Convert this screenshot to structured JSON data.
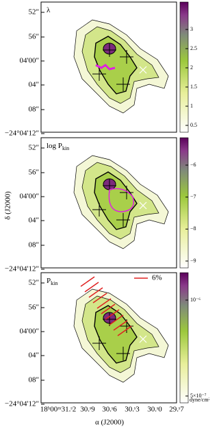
{
  "figure": {
    "y_axis_label": "δ (J2000)",
    "x_axis_label": "α (J2000)",
    "x_tick_labels": [
      "18ʰ00ᵐ31.ˢ2",
      "30.ˢ9",
      "30.ˢ6",
      "30.ˢ3",
      "30.ˢ0",
      "29.ˢ7"
    ],
    "y_tick_labels": [
      "52\"",
      "56\"",
      "04'00\"",
      "04\"",
      "08\"",
      "−24°04'12\""
    ],
    "panels": [
      {
        "label": {
          "main": "λ",
          "sub": ""
        },
        "colorbar_ticks": [
          "3",
          "2.5",
          "2",
          "1.5",
          "1",
          "0.5"
        ]
      },
      {
        "label": {
          "main": "log P",
          "sub": "kin"
        },
        "colorbar_ticks": [
          "−6",
          "−7",
          "−8",
          "−9"
        ]
      },
      {
        "label": {
          "main": "P",
          "sub": "kin"
        },
        "colorbar_ticks": [
          "10⁻⁶",
          "5×10⁻⁷"
        ],
        "colorbar_unit": "dyne/cm²",
        "legend": "6%"
      }
    ]
  }
}
